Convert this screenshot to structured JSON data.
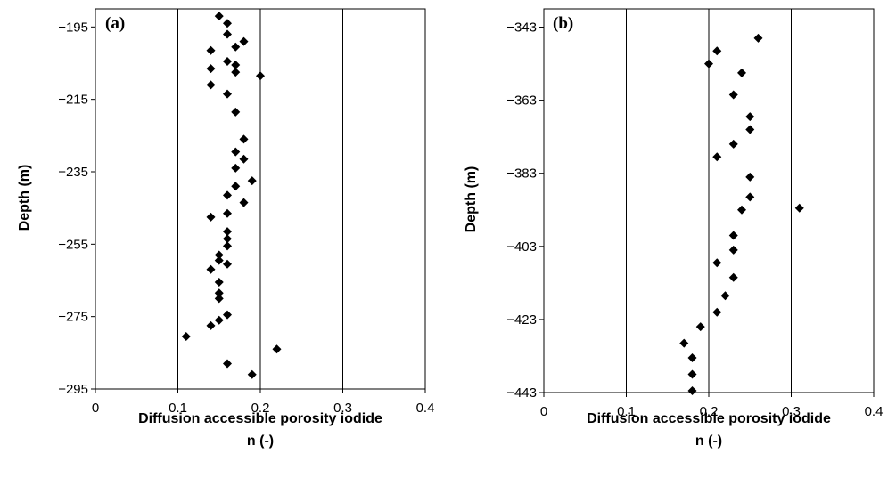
{
  "chart_data": [
    {
      "type": "scatter",
      "panel_label": "(a)",
      "xlabel_line1": "Diffusion accessible porosity iodide",
      "xlabel_line2": "n (-)",
      "ylabel": "Depth (m)",
      "xlim": [
        0,
        0.4
      ],
      "ylim": [
        -295,
        -190
      ],
      "x_ticks": [
        "0",
        "0.1",
        "0.2",
        "0.3",
        "0.4"
      ],
      "y_ticks": [
        "-195",
        "-215",
        "-235",
        "-255",
        "-275",
        "-295"
      ],
      "vertical_gridlines": [
        0.1,
        0.2,
        0.3
      ],
      "marker": "diamond",
      "points": [
        {
          "x": 0.15,
          "y": -192.0
        },
        {
          "x": 0.16,
          "y": -194.0
        },
        {
          "x": 0.16,
          "y": -197.0
        },
        {
          "x": 0.18,
          "y": -199.0
        },
        {
          "x": 0.17,
          "y": -200.5
        },
        {
          "x": 0.14,
          "y": -201.5
        },
        {
          "x": 0.16,
          "y": -204.5
        },
        {
          "x": 0.17,
          "y": -205.5
        },
        {
          "x": 0.14,
          "y": -206.5
        },
        {
          "x": 0.17,
          "y": -207.5
        },
        {
          "x": 0.2,
          "y": -208.5
        },
        {
          "x": 0.14,
          "y": -211.0
        },
        {
          "x": 0.16,
          "y": -213.5
        },
        {
          "x": 0.17,
          "y": -218.5
        },
        {
          "x": 0.18,
          "y": -226.0
        },
        {
          "x": 0.17,
          "y": -229.5
        },
        {
          "x": 0.18,
          "y": -231.5
        },
        {
          "x": 0.17,
          "y": -234.0
        },
        {
          "x": 0.19,
          "y": -237.5
        },
        {
          "x": 0.17,
          "y": -239.0
        },
        {
          "x": 0.16,
          "y": -241.5
        },
        {
          "x": 0.18,
          "y": -243.5
        },
        {
          "x": 0.16,
          "y": -246.5
        },
        {
          "x": 0.14,
          "y": -247.5
        },
        {
          "x": 0.16,
          "y": -251.5
        },
        {
          "x": 0.16,
          "y": -253.5
        },
        {
          "x": 0.16,
          "y": -255.5
        },
        {
          "x": 0.15,
          "y": -258.0
        },
        {
          "x": 0.15,
          "y": -259.5
        },
        {
          "x": 0.16,
          "y": -260.5
        },
        {
          "x": 0.14,
          "y": -262.0
        },
        {
          "x": 0.15,
          "y": -265.5
        },
        {
          "x": 0.15,
          "y": -268.5
        },
        {
          "x": 0.15,
          "y": -270.0
        },
        {
          "x": 0.16,
          "y": -274.5
        },
        {
          "x": 0.15,
          "y": -276.0
        },
        {
          "x": 0.14,
          "y": -277.5
        },
        {
          "x": 0.11,
          "y": -280.5
        },
        {
          "x": 0.22,
          "y": -284.0
        },
        {
          "x": 0.16,
          "y": -288.0
        },
        {
          "x": 0.19,
          "y": -291.0
        }
      ]
    },
    {
      "type": "scatter",
      "panel_label": "(b)",
      "xlabel_line1": "Diffusion accessible porosity iodide",
      "xlabel_line2": "n (-)",
      "ylabel": "Depth (m)",
      "xlim": [
        0,
        0.4
      ],
      "ylim": [
        -443,
        -338
      ],
      "x_ticks": [
        "0",
        "0.1",
        "0.2",
        "0.3",
        "0.4"
      ],
      "y_ticks": [
        "-343",
        "-363",
        "-383",
        "-403",
        "-423",
        "-443"
      ],
      "vertical_gridlines": [
        0.1,
        0.2,
        0.3
      ],
      "marker": "diamond",
      "points": [
        {
          "x": 0.26,
          "y": -346.0
        },
        {
          "x": 0.21,
          "y": -349.5
        },
        {
          "x": 0.2,
          "y": -353.0
        },
        {
          "x": 0.24,
          "y": -355.5
        },
        {
          "x": 0.23,
          "y": -361.5
        },
        {
          "x": 0.25,
          "y": -367.5
        },
        {
          "x": 0.25,
          "y": -371.0
        },
        {
          "x": 0.23,
          "y": -375.0
        },
        {
          "x": 0.21,
          "y": -378.5
        },
        {
          "x": 0.25,
          "y": -384.0
        },
        {
          "x": 0.25,
          "y": -389.5
        },
        {
          "x": 0.31,
          "y": -392.5
        },
        {
          "x": 0.24,
          "y": -393.0
        },
        {
          "x": 0.23,
          "y": -400.0
        },
        {
          "x": 0.23,
          "y": -404.0
        },
        {
          "x": 0.21,
          "y": -407.5
        },
        {
          "x": 0.23,
          "y": -411.5
        },
        {
          "x": 0.22,
          "y": -416.5
        },
        {
          "x": 0.21,
          "y": -421.0
        },
        {
          "x": 0.19,
          "y": -425.0
        },
        {
          "x": 0.17,
          "y": -429.5
        },
        {
          "x": 0.18,
          "y": -433.5
        },
        {
          "x": 0.18,
          "y": -438.0
        },
        {
          "x": 0.18,
          "y": -442.5
        }
      ]
    }
  ]
}
